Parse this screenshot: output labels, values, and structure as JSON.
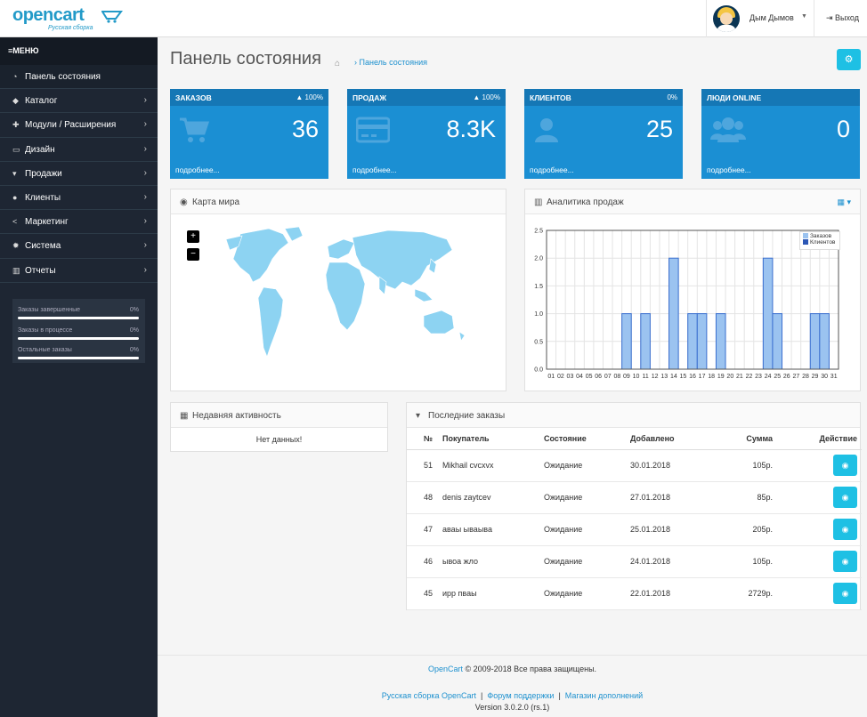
{
  "brand": {
    "name": "opencart",
    "tagline": "Русская сборка"
  },
  "header": {
    "user_name": "Дым Дымов",
    "logout": "Выход"
  },
  "sidebar": {
    "title": "МЕНЮ",
    "items": [
      {
        "label": "Панель состояния",
        "icon": "dashboard-icon",
        "has_children": false
      },
      {
        "label": "Каталог",
        "icon": "tags-icon",
        "has_children": true
      },
      {
        "label": "Модули / Расширения",
        "icon": "puzzle-icon",
        "has_children": true
      },
      {
        "label": "Дизайн",
        "icon": "desktop-icon",
        "has_children": true
      },
      {
        "label": "Продажи",
        "icon": "cart-icon",
        "has_children": true
      },
      {
        "label": "Клиенты",
        "icon": "user-icon",
        "has_children": true
      },
      {
        "label": "Маркетинг",
        "icon": "share-icon",
        "has_children": true
      },
      {
        "label": "Система",
        "icon": "cog-icon",
        "has_children": true
      },
      {
        "label": "Отчеты",
        "icon": "bar-chart-icon",
        "has_children": true
      }
    ],
    "stats": [
      {
        "label": "Заказы завершенные",
        "percent": "0%"
      },
      {
        "label": "Заказы в процессе",
        "percent": "0%"
      },
      {
        "label": "Остальные заказы",
        "percent": "0%"
      }
    ]
  },
  "page": {
    "title": "Панель состояния",
    "breadcrumb": "Панель состояния"
  },
  "tiles": [
    {
      "label": "ЗАКАЗОВ",
      "percent": "100%",
      "trend": "up",
      "value": "36",
      "more": "подробнее...",
      "icon": "cart-icon"
    },
    {
      "label": "ПРОДАЖ",
      "percent": "100%",
      "trend": "up",
      "value": "8.3K",
      "more": "подробнее...",
      "icon": "credit-card-icon"
    },
    {
      "label": "КЛИЕНТОВ",
      "percent": "0%",
      "trend": "none",
      "value": "25",
      "more": "подробнее...",
      "icon": "user-icon"
    },
    {
      "label": "ЛЮДИ ONLINE",
      "percent": "",
      "trend": "none",
      "value": "0",
      "more": "подробнее...",
      "icon": "users-icon"
    }
  ],
  "map_panel": {
    "title": "Карта мира",
    "zoom_in": "+",
    "zoom_out": "−"
  },
  "analytics_panel": {
    "title": "Аналитика продаж"
  },
  "chart_data": {
    "type": "bar",
    "categories": [
      "01",
      "02",
      "03",
      "04",
      "05",
      "06",
      "07",
      "08",
      "09",
      "10",
      "11",
      "12",
      "13",
      "14",
      "15",
      "16",
      "17",
      "18",
      "19",
      "20",
      "21",
      "22",
      "23",
      "24",
      "25",
      "26",
      "27",
      "28",
      "29",
      "30",
      "31"
    ],
    "series": [
      {
        "name": "Заказов",
        "values": [
          0,
          0,
          0,
          0,
          0,
          0,
          0,
          0,
          1,
          0,
          1,
          0,
          0,
          2,
          0,
          1,
          1,
          0,
          1,
          0,
          0,
          0,
          0,
          2,
          1,
          0,
          0,
          0,
          1,
          1,
          0
        ],
        "color": "#9bc3f0"
      },
      {
        "name": "Клиентов",
        "values": [
          0,
          0,
          0,
          0,
          0,
          0,
          0,
          0,
          0,
          0,
          0,
          0,
          0,
          0,
          0,
          0,
          0,
          0,
          0,
          0,
          0,
          0,
          0,
          0,
          0,
          0,
          0,
          0,
          0,
          0,
          0
        ],
        "color": "#2c57b5"
      }
    ],
    "y_ticks": [
      "0.0",
      "0.5",
      "1.0",
      "1.5",
      "2.0",
      "2.5"
    ],
    "ylim": [
      0,
      2.5
    ],
    "grid": true,
    "legend": "top-right"
  },
  "activity_panel": {
    "title": "Недавняя активность",
    "empty": "Нет данных!"
  },
  "orders_panel": {
    "title": "Последние заказы",
    "columns": [
      "№",
      "Покупатель",
      "Состояние",
      "Добавлено",
      "Сумма",
      "Действие"
    ],
    "rows": [
      {
        "id": "51",
        "customer": "Mikhail cvcxvx",
        "status": "Ожидание",
        "date": "30.01.2018",
        "total": "105р."
      },
      {
        "id": "48",
        "customer": "denis zaytcev",
        "status": "Ожидание",
        "date": "27.01.2018",
        "total": "85р."
      },
      {
        "id": "47",
        "customer": "аваы ываыва",
        "status": "Ожидание",
        "date": "25.01.2018",
        "total": "205р."
      },
      {
        "id": "46",
        "customer": "ывоа жло",
        "status": "Ожидание",
        "date": "24.01.2018",
        "total": "105р."
      },
      {
        "id": "45",
        "customer": "ирр пваы",
        "status": "Ожидание",
        "date": "22.01.2018",
        "total": "2729р."
      }
    ]
  },
  "footer": {
    "brand": "OpenCart",
    "copyright": " © 2009-2018 Все права защищены.",
    "links": [
      "Русская сборка OpenCart",
      "Форум поддержки",
      "Магазин дополнений"
    ],
    "separator": "|",
    "version": "Version 3.0.2.0 (rs.1)"
  }
}
